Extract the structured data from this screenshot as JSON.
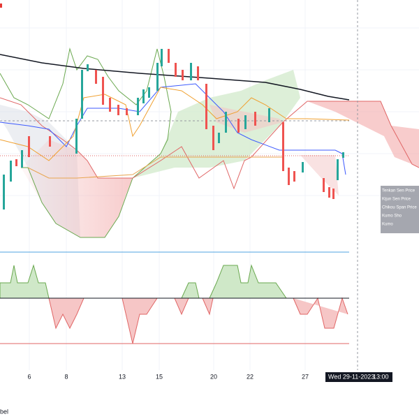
{
  "time_axis": {
    "labels": [
      "6",
      "8",
      "13",
      "15",
      "20",
      "22",
      "27"
    ]
  },
  "crosshair": {
    "date": "Wed 29-11-2023",
    "time": "13:00"
  },
  "legend": {
    "items": [
      "Tenkan Sen Price",
      "Kijun Sen Price",
      "Chikou Span Price",
      "Kumo Sho",
      "Kumo"
    ]
  },
  "footer": {
    "text": "bel"
  }
}
